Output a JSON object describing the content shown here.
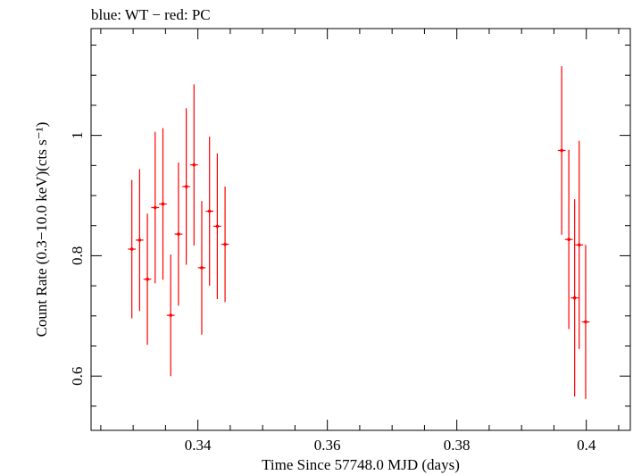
{
  "chart_data": {
    "type": "scatter",
    "title": "blue: WT − red: PC",
    "xlabel": "Time Since 57748.0 MJD (days)",
    "ylabel": "Count Rate (0.3−10.0 keV)(cts s⁻¹)",
    "xlim": [
      0.3235,
      0.4068
    ],
    "ylim": [
      0.5098,
      1.1775
    ],
    "xticks": [
      0.34,
      0.36,
      0.38,
      0.4
    ],
    "xtick_labels": [
      "0.34",
      "0.36",
      "0.38",
      "0.4"
    ],
    "yticks": [
      0.6,
      0.8,
      1.0
    ],
    "ytick_labels": [
      "0.6",
      "0.8",
      "1"
    ],
    "grid": false,
    "series": [
      {
        "name": "PC",
        "color": "#ff0000",
        "points": [
          {
            "x": 0.3298,
            "xerr": 0.0006,
            "y": 0.811,
            "yerr": 0.115
          },
          {
            "x": 0.331,
            "xerr": 0.0006,
            "y": 0.826,
            "yerr": 0.118
          },
          {
            "x": 0.3322,
            "xerr": 0.0006,
            "y": 0.761,
            "yerr": 0.109
          },
          {
            "x": 0.3334,
            "xerr": 0.0006,
            "y": 0.88,
            "yerr": 0.126
          },
          {
            "x": 0.3346,
            "xerr": 0.0006,
            "y": 0.886,
            "yerr": 0.126
          },
          {
            "x": 0.3358,
            "xerr": 0.0006,
            "y": 0.701,
            "yerr": 0.101
          },
          {
            "x": 0.337,
            "xerr": 0.0006,
            "y": 0.836,
            "yerr": 0.119
          },
          {
            "x": 0.3382,
            "xerr": 0.0006,
            "y": 0.915,
            "yerr": 0.13
          },
          {
            "x": 0.3394,
            "xerr": 0.0006,
            "y": 0.951,
            "yerr": 0.134
          },
          {
            "x": 0.3406,
            "xerr": 0.0006,
            "y": 0.78,
            "yerr": 0.111
          },
          {
            "x": 0.3418,
            "xerr": 0.0006,
            "y": 0.874,
            "yerr": 0.124
          },
          {
            "x": 0.343,
            "xerr": 0.0006,
            "y": 0.849,
            "yerr": 0.121
          },
          {
            "x": 0.3442,
            "xerr": 0.0006,
            "y": 0.819,
            "yerr": 0.096
          },
          {
            "x": 0.3962,
            "xerr": 0.0006,
            "y": 0.975,
            "yerr": 0.14
          },
          {
            "x": 0.3973,
            "xerr": 0.0006,
            "y": 0.827,
            "yerr": 0.149
          },
          {
            "x": 0.3982,
            "xerr": 0.0006,
            "y": 0.73,
            "yerr": 0.164
          },
          {
            "x": 0.3989,
            "xerr": 0.0006,
            "y": 0.818,
            "yerr": 0.173
          },
          {
            "x": 0.3999,
            "xerr": 0.0006,
            "y": 0.69,
            "yerr": 0.128
          }
        ]
      }
    ]
  }
}
